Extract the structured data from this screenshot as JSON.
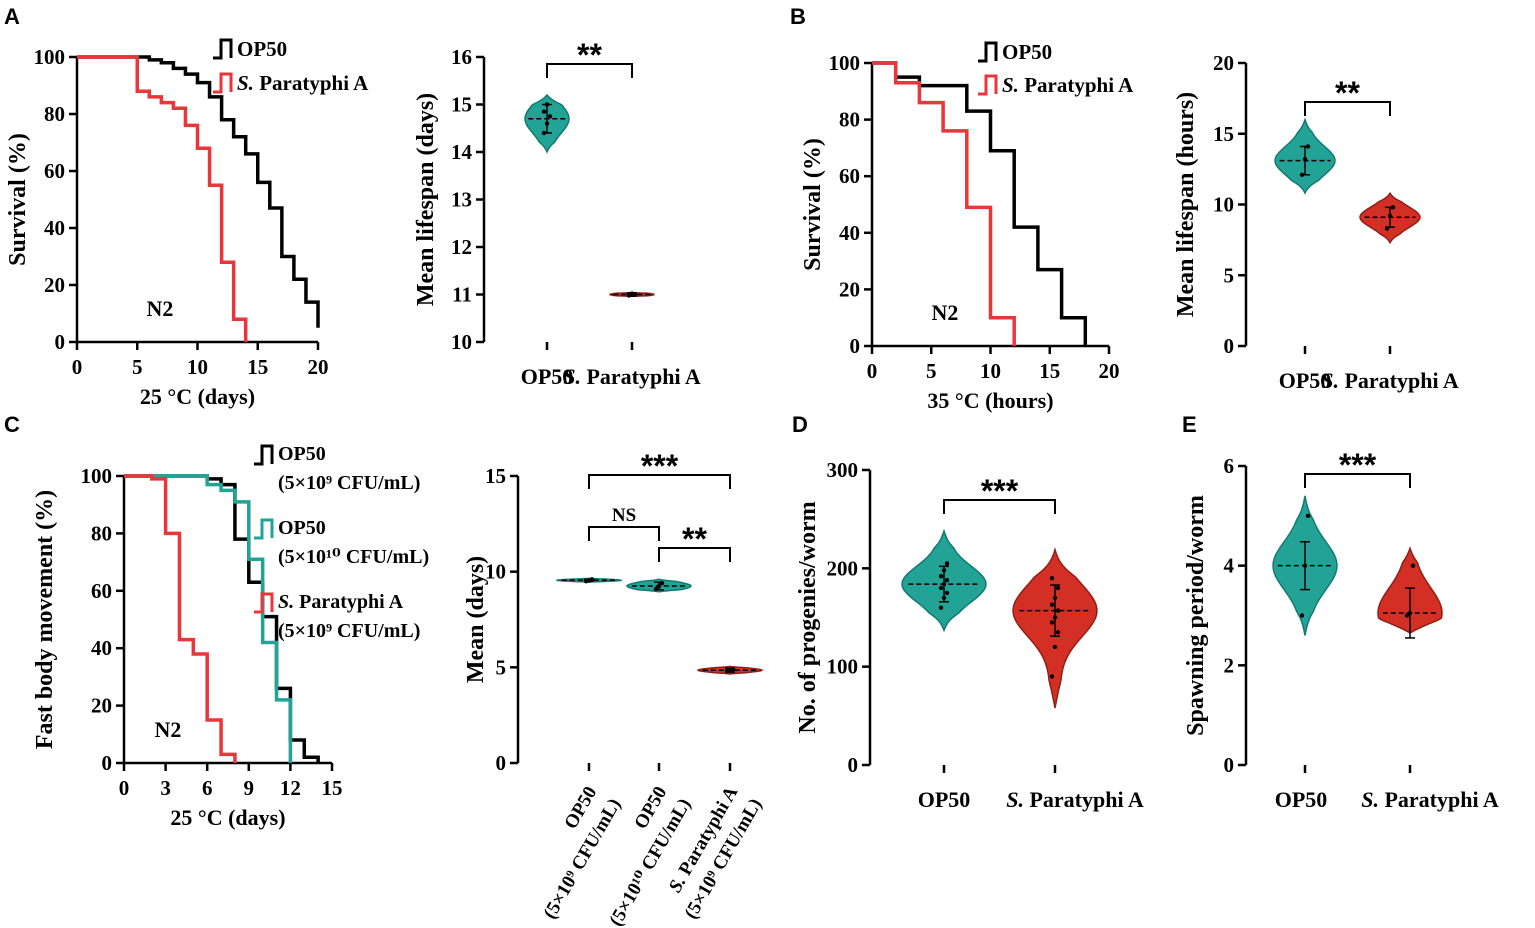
{
  "colors": {
    "op50": "#000000",
    "para": "#e8363a",
    "teal": "#22a396",
    "teal_dark": "#137a70",
    "red": "#d42f24",
    "red_dark": "#8e1f17",
    "axis": "#000000"
  },
  "chart_data": [
    {
      "id": "A1",
      "type": "line",
      "panel_label": "A",
      "step": true,
      "xlabel": "25 °C (days)",
      "ylabel": "Survival (%)",
      "xlim": [
        0,
        20
      ],
      "ylim": [
        0,
        100
      ],
      "xticks": [
        0,
        5,
        10,
        15,
        20
      ],
      "yticks": [
        0,
        20,
        40,
        60,
        80,
        100
      ],
      "annotation": "N2",
      "series": [
        {
          "name": "OP50",
          "color": "op50",
          "x": [
            0,
            5,
            6,
            7,
            8,
            9,
            10,
            11,
            12,
            13,
            14,
            15,
            16,
            17,
            18,
            19,
            20
          ],
          "y": [
            100,
            100,
            99,
            98,
            96,
            94,
            91,
            86,
            78,
            72,
            66,
            56,
            47,
            30,
            22,
            14,
            5
          ]
        },
        {
          "name": "S. Paratyphi A",
          "color": "para",
          "x": [
            0,
            5,
            6,
            7,
            8,
            9,
            10,
            11,
            12,
            13,
            14
          ],
          "y": [
            100,
            88,
            86,
            84,
            82,
            76,
            68,
            55,
            28,
            8,
            0
          ]
        }
      ]
    },
    {
      "id": "A2",
      "type": "violin",
      "ylabel": "Mean lifespan (days)",
      "ylim": [
        10,
        16
      ],
      "yticks": [
        10,
        11,
        12,
        13,
        14,
        15,
        16
      ],
      "categories": [
        "OP50",
        "S. Paratyphi A"
      ],
      "series": [
        {
          "name": "OP50",
          "mean": 14.7,
          "sd": 0.3,
          "min": 14.0,
          "max": 15.2,
          "points": [
            14.4,
            14.6,
            14.75,
            14.85,
            15.0
          ]
        },
        {
          "name": "S. Paratyphi A",
          "mean": 11.0,
          "sd": 0.03,
          "min": 10.96,
          "max": 11.04,
          "points": [
            10.98,
            10.99,
            11.0,
            11.01,
            11.02
          ]
        }
      ],
      "significance": [
        {
          "a": 0,
          "b": 1,
          "label": "**"
        }
      ]
    },
    {
      "id": "B1",
      "type": "line",
      "panel_label": "B",
      "step": true,
      "xlabel": "35 °C (hours)",
      "ylabel": "Survival (%)",
      "xlim": [
        0,
        20
      ],
      "ylim": [
        0,
        100
      ],
      "xticks": [
        0,
        5,
        10,
        15,
        20
      ],
      "yticks": [
        0,
        20,
        40,
        60,
        80,
        100
      ],
      "annotation": "N2",
      "series": [
        {
          "name": "OP50",
          "color": "op50",
          "x": [
            0,
            2,
            4,
            8,
            10,
            12,
            14,
            16,
            18
          ],
          "y": [
            100,
            95,
            92,
            83,
            69,
            42,
            27,
            10,
            0
          ]
        },
        {
          "name": "S. Paratyphi A",
          "color": "para",
          "x": [
            0,
            2,
            4,
            6,
            8,
            10,
            12
          ],
          "y": [
            100,
            93,
            86,
            76,
            49,
            10,
            0
          ]
        }
      ]
    },
    {
      "id": "B2",
      "type": "violin",
      "ylabel": "Mean lifespan (hours)",
      "ylim": [
        0,
        20
      ],
      "yticks": [
        0,
        5,
        10,
        15,
        20
      ],
      "categories": [
        "OP50",
        "S. Paratyphi A"
      ],
      "series": [
        {
          "name": "OP50",
          "mean": 13.1,
          "sd": 1.0,
          "min": 10.8,
          "max": 16.0,
          "points": [
            12.1,
            13.2,
            14.1
          ]
        },
        {
          "name": "S. Paratyphi A",
          "mean": 9.1,
          "sd": 0.7,
          "min": 7.3,
          "max": 10.8,
          "points": [
            8.3,
            9.2,
            9.8
          ]
        }
      ],
      "significance": [
        {
          "a": 0,
          "b": 1,
          "label": "**"
        }
      ]
    },
    {
      "id": "C1",
      "type": "line",
      "panel_label": "C",
      "step": true,
      "xlabel": "25 °C (days)",
      "ylabel": "Fast body movement (%)",
      "xlim": [
        0,
        15
      ],
      "ylim": [
        0,
        100
      ],
      "xticks": [
        0,
        3,
        6,
        9,
        12,
        15
      ],
      "yticks": [
        0,
        20,
        40,
        60,
        80,
        100
      ],
      "annotation": "N2",
      "series": [
        {
          "name": "OP50 (5×10⁹ CFU/mL)",
          "legend_lines": [
            "OP50",
            "(5×10⁹ CFU/mL)"
          ],
          "color": "op50",
          "x": [
            0,
            6,
            7,
            8,
            9,
            10,
            11,
            12,
            13,
            14
          ],
          "y": [
            100,
            99,
            97,
            78,
            63,
            51,
            26,
            8,
            2,
            0
          ]
        },
        {
          "name": "OP50 (5×10¹⁰ CFU/mL)",
          "legend_lines": [
            "OP50",
            "(5×10¹⁰ CFU/mL)"
          ],
          "color": "teal",
          "x": [
            0,
            6,
            7,
            8,
            9,
            10,
            11,
            12
          ],
          "y": [
            100,
            97,
            95,
            91,
            71,
            42,
            22,
            0
          ]
        },
        {
          "name": "S. Paratyphi A (5×10⁹ CFU/mL)",
          "legend_lines": [
            "S. Paratyphi A",
            "(5×10⁹ CFU/mL)"
          ],
          "color": "para",
          "x": [
            0,
            2,
            3,
            4,
            5,
            6,
            7,
            8
          ],
          "y": [
            100,
            99,
            80,
            43,
            38,
            15,
            3,
            0
          ]
        }
      ]
    },
    {
      "id": "C2",
      "type": "violin",
      "ylabel": "Mean (days)",
      "ylim": [
        0,
        15
      ],
      "yticks": [
        0,
        5,
        10,
        15
      ],
      "categories": [
        "OP50 (5×10⁹ CFU/mL)",
        "OP50 (5×10¹⁰ CFU/mL)",
        "S. Paratyphi A (5×10⁹ CFU/mL)"
      ],
      "category_lines": [
        [
          "OP50",
          "(5×10⁹ CFU/mL)"
        ],
        [
          "OP50",
          "(5×10¹⁰ CFU/mL)"
        ],
        [
          "S. Paratyphi A",
          "(5×10⁹ CFU/mL)"
        ]
      ],
      "series": [
        {
          "name": "OP50 (5×10⁹)",
          "mean": 9.55,
          "sd": 0.05,
          "min": 9.45,
          "max": 9.65,
          "points": [
            9.5,
            9.55,
            9.6
          ]
        },
        {
          "name": "OP50 (5×10¹⁰)",
          "mean": 9.25,
          "sd": 0.2,
          "min": 8.95,
          "max": 9.6,
          "points": [
            9.1,
            9.25,
            9.4
          ]
        },
        {
          "name": "S. Paratyphi A (5×10⁹)",
          "mean": 4.85,
          "sd": 0.1,
          "min": 4.65,
          "max": 5.05,
          "points": [
            4.8,
            4.85,
            4.9
          ]
        }
      ],
      "significance": [
        {
          "a": 0,
          "b": 2,
          "label": "***"
        },
        {
          "a": 0,
          "b": 1,
          "label": "NS"
        },
        {
          "a": 1,
          "b": 2,
          "label": "**"
        }
      ]
    },
    {
      "id": "D",
      "type": "violin",
      "panel_label": "D",
      "ylabel": "No. of progenies/worm",
      "ylim": [
        0,
        300
      ],
      "yticks": [
        0,
        100,
        200,
        300
      ],
      "categories": [
        "OP50",
        "S. Paratyphi A"
      ],
      "series": [
        {
          "name": "OP50",
          "mean": 184,
          "sd": 18,
          "min": 137,
          "max": 238,
          "points": [
            160,
            170,
            175,
            180,
            184,
            188,
            192,
            198,
            205
          ]
        },
        {
          "name": "S. Paratyphi A",
          "mean": 157,
          "sd": 26,
          "min": 58,
          "max": 219,
          "points": [
            90,
            120,
            135,
            145,
            150,
            157,
            163,
            170,
            180,
            190
          ]
        }
      ],
      "significance": [
        {
          "a": 0,
          "b": 1,
          "label": "***"
        }
      ]
    },
    {
      "id": "E",
      "type": "violin",
      "panel_label": "E",
      "ylabel": "Spawning period/worm",
      "ylim": [
        0,
        6
      ],
      "yticks": [
        0,
        2,
        4,
        6
      ],
      "categories": [
        "OP50",
        "S. Paratyphi A"
      ],
      "series": [
        {
          "name": "OP50",
          "mean": 4.0,
          "sd": 0.48,
          "min": 2.6,
          "max": 5.4,
          "points": [
            3.0,
            4.0,
            5.0
          ]
        },
        {
          "name": "S. Paratyphi A",
          "mean": 3.05,
          "sd": 0.5,
          "min": 2.65,
          "max": 4.35,
          "points": [
            3.0,
            3.05,
            4.0
          ]
        }
      ],
      "significance": [
        {
          "a": 0,
          "b": 1,
          "label": "***"
        }
      ]
    }
  ]
}
